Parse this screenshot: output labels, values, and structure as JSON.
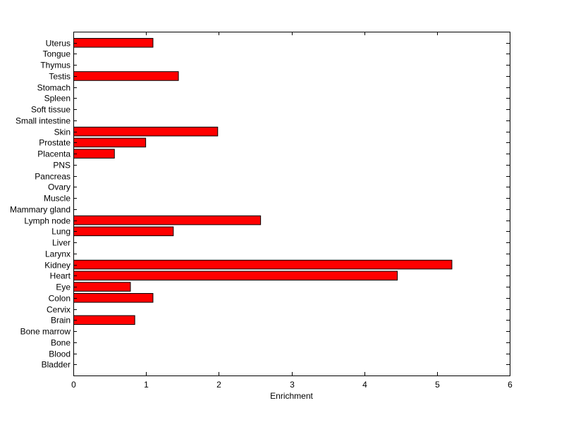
{
  "chart_data": {
    "type": "bar",
    "orientation": "horizontal",
    "title": "",
    "xlabel": "Enrichment",
    "ylabel": "",
    "xlim": [
      0,
      6
    ],
    "xticks": [
      0,
      1,
      2,
      3,
      4,
      5,
      6
    ],
    "grid": false,
    "bar_color": "#ff0000",
    "bar_edge_color": "#000000",
    "categories": [
      "Bladder",
      "Blood",
      "Bone",
      "Bone marrow",
      "Brain",
      "Cervix",
      "Colon",
      "Eye",
      "Heart",
      "Kidney",
      "Larynx",
      "Liver",
      "Lung",
      "Lymph node",
      "Mammary gland",
      "Muscle",
      "Ovary",
      "Pancreas",
      "PNS",
      "Placenta",
      "Prostate",
      "Skin",
      "Small intestine",
      "Soft tissue",
      "Spleen",
      "Stomach",
      "Testis",
      "Thymus",
      "Tongue",
      "Uterus"
    ],
    "values": [
      0,
      0,
      0,
      0,
      0.84,
      0,
      1.09,
      0.78,
      4.45,
      5.2,
      0,
      0,
      1.37,
      2.57,
      0,
      0,
      0,
      0,
      0,
      0.56,
      0.99,
      1.98,
      0,
      0,
      0,
      0,
      1.44,
      0,
      0,
      1.09
    ]
  }
}
